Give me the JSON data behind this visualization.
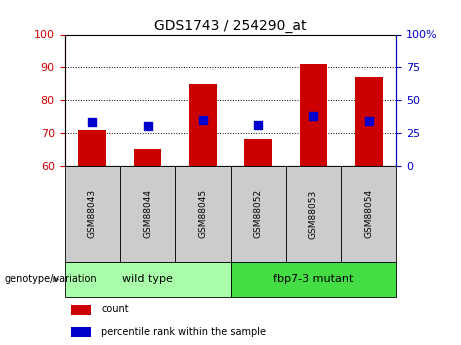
{
  "title": "GDS1743 / 254290_at",
  "samples": [
    "GSM88043",
    "GSM88044",
    "GSM88045",
    "GSM88052",
    "GSM88053",
    "GSM88054"
  ],
  "bar_values": [
    71,
    65,
    85,
    68,
    91,
    87
  ],
  "percentile_values": [
    33,
    30,
    35,
    31,
    38,
    34
  ],
  "ylim_left": [
    60,
    100
  ],
  "ylim_right": [
    0,
    100
  ],
  "yticks_left": [
    60,
    70,
    80,
    90,
    100
  ],
  "yticks_right": [
    0,
    25,
    50,
    75,
    100
  ],
  "ytick_right_labels": [
    "0",
    "25",
    "50",
    "75",
    "100%"
  ],
  "bar_color": "#cc0000",
  "point_color": "#0000cc",
  "groups": [
    {
      "label": "wild type",
      "start": 0,
      "end": 3
    },
    {
      "label": "fbp7-3 mutant",
      "start": 3,
      "end": 6
    }
  ],
  "group_colors": [
    "#aaffaa",
    "#44dd44"
  ],
  "legend_count_label": "count",
  "legend_percentile_label": "percentile rank within the sample",
  "genotype_label": "genotype/variation",
  "left_tick_color": "#cc0000",
  "right_tick_color": "#0000cc",
  "tick_label_bg_color": "#cccccc",
  "bar_width": 0.5,
  "point_size": 30
}
